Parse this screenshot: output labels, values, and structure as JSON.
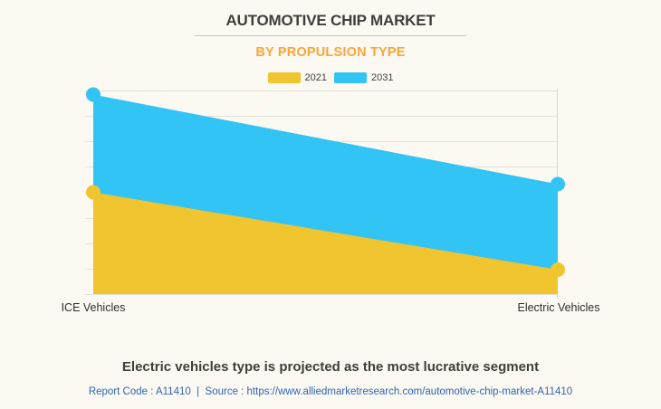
{
  "page": {
    "background_color": "#FBF9F1"
  },
  "header": {
    "title": "AUTOMOTIVE CHIP MARKET",
    "subtitle": "BY PROPULSION TYPE",
    "title_color": "#3E3E3E",
    "subtitle_color": "#F9A63A"
  },
  "chart_data": {
    "type": "area",
    "categories": [
      "ICE Vehicles",
      "Electric Vehicles"
    ],
    "series": [
      {
        "name": "2021",
        "color": "#F1C52F",
        "values": [
          50,
          12
        ]
      },
      {
        "name": "2031",
        "color": "#31C4F5",
        "values": [
          98,
          54
        ]
      }
    ],
    "ylim": [
      0,
      100
    ],
    "y_gridline_count": 9,
    "grid": true,
    "legend_position": "top",
    "marker_radius": 8
  },
  "colors": {
    "gridline": "#E2E1DA",
    "axis_line": "#D8D7D0",
    "title_underline": "#C9C8C0",
    "x_label": "#2E2E2E",
    "legend_label": "#3F3F3F",
    "footer_headline": "#3E3E3E",
    "footer_link": "#2D65B8"
  },
  "footer": {
    "headline": "Electric vehicles type is projected as the most lucrative segment",
    "report_line": "Report Code : A11410  |  Source : https://www.alliedmarketresearch.com/automotive-chip-market-A11410"
  }
}
